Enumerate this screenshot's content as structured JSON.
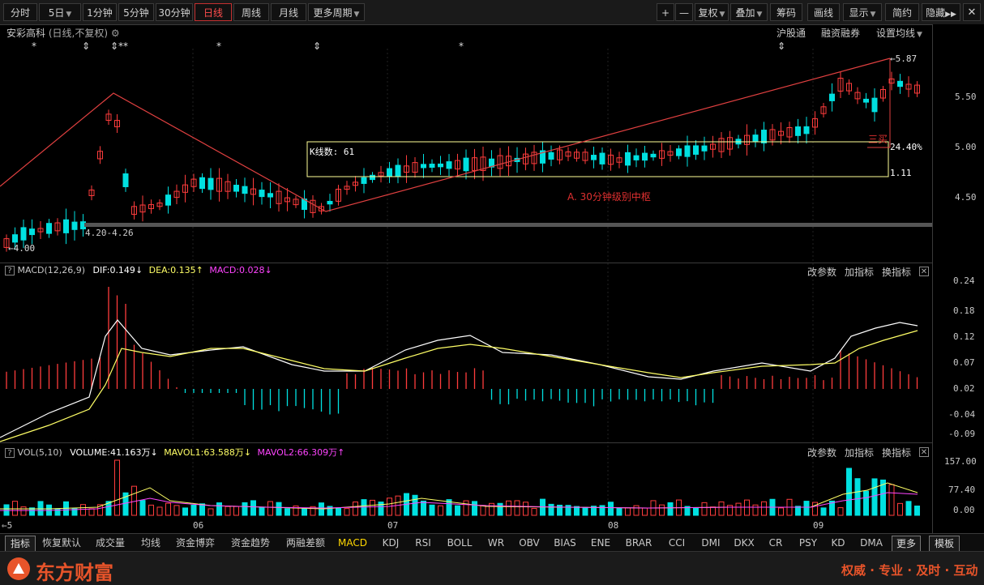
{
  "toolbar": {
    "periods": [
      "分时",
      "5日",
      "1分钟",
      "5分钟",
      "30分钟",
      "日线",
      "周线",
      "月线",
      "更多周期"
    ],
    "active_period": "日线",
    "right_buttons": [
      "+",
      "—",
      "复权",
      "叠加",
      "筹码",
      "画线",
      "显示",
      "简约",
      "隐藏"
    ]
  },
  "stock": {
    "name": "安彩高科",
    "mode": "(日线,不复权)"
  },
  "main_chart": {
    "right_links": [
      "沪股通",
      "融资融券",
      "设置均线"
    ],
    "price_axis": [
      "5.50",
      "5.00",
      "4.50"
    ],
    "low_marker": "4.00",
    "high_marker": "5.87",
    "support_label": "4.20-4.26",
    "box_label": "K线数: 61",
    "box_pct": "24.40%",
    "box_ratio": "1.11",
    "zhongshu_label": "A. 30分钟级别中枢",
    "sanmai_label": "三买",
    "event_marks": [
      "*",
      "⇕",
      "⇕**",
      "*",
      "⇕",
      "*",
      "⇕"
    ]
  },
  "macd": {
    "title": "MACD(12,26,9)",
    "dif": "DIF:0.149",
    "dea": "DEA:0.135",
    "macd": "MACD:0.028",
    "axis": [
      "0.24",
      "0.18",
      "0.12",
      "0.07",
      "0.02",
      "-0.04",
      "-0.09"
    ],
    "actions": [
      "改参数",
      "加指标",
      "换指标"
    ]
  },
  "vol": {
    "title": "VOL(5,10)",
    "volume": "VOLUME:41.163万",
    "mavol1": "MAVOL1:63.588万",
    "mavol2": "MAVOL2:66.309万",
    "axis": [
      "157.00",
      "77.40",
      "0.00"
    ],
    "actions": [
      "改参数",
      "加指标",
      "换指标"
    ]
  },
  "xaxis": [
    "5",
    "06",
    "07",
    "08",
    "09"
  ],
  "bottom_tabs": [
    "指标",
    "恢复默认",
    "成交量",
    "均线",
    "资金博弈",
    "资金趋势",
    "两融差额",
    "MACD",
    "KDJ",
    "RSI",
    "BOLL",
    "WR",
    "OBV",
    "BIAS",
    "ENE",
    "BRAR",
    "CCI",
    "DMI",
    "DKX",
    "CR",
    "PSY",
    "KD",
    "DMA",
    "更多",
    "模板"
  ],
  "active_tab": "MACD",
  "footer": {
    "brand": "东方财富",
    "slogan": "权威 · 专业 · 及时 · 互动"
  },
  "colors": {
    "up": "#ff3c3c",
    "down": "#00e0e0",
    "dif": "#ffffff",
    "dea": "#ffff66",
    "ma2": "#ff44ff",
    "box": "#ffff99",
    "accent": "#e04040"
  }
}
